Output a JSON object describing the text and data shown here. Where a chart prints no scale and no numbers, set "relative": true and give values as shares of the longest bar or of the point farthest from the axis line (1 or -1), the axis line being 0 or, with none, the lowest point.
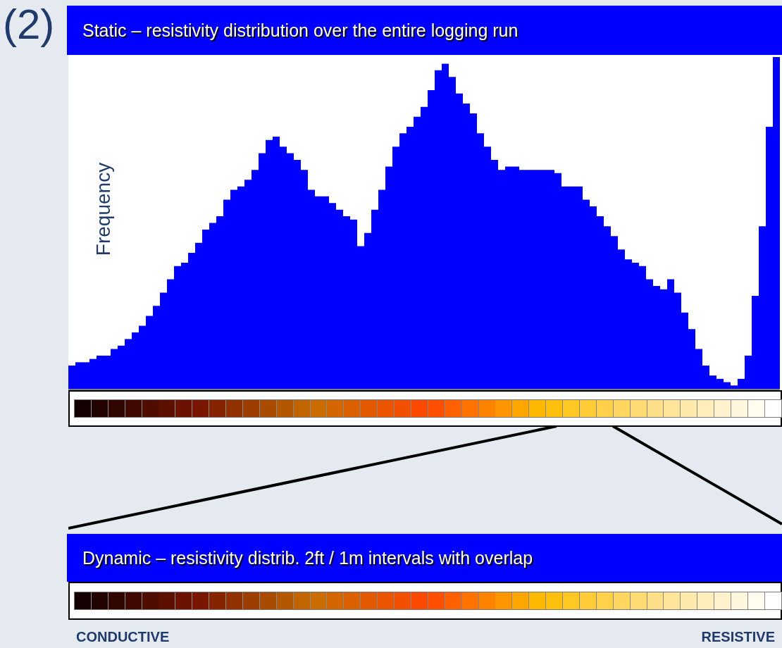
{
  "chart_data": {
    "type": "bar",
    "relative": true,
    "title": "Static – resistivity distribution over the entire logging run",
    "ylabel": "Frequency",
    "color": "#0000ff",
    "legend": false,
    "tick_labels": false,
    "categories": [
      null,
      null,
      null,
      null,
      null,
      null,
      null,
      null,
      null,
      null,
      null,
      null,
      null,
      null,
      null,
      null,
      null,
      null,
      null,
      null,
      null,
      null,
      null,
      null,
      null,
      null,
      null,
      null,
      null,
      null,
      null,
      null,
      null,
      null,
      null,
      null,
      null,
      null,
      null,
      null,
      null,
      null,
      null,
      null,
      null,
      null,
      null,
      null,
      null,
      null,
      null,
      null,
      null,
      null,
      null,
      null,
      null,
      null,
      null,
      null,
      null,
      null,
      null,
      null,
      null,
      null,
      null,
      null,
      null,
      null,
      null,
      null,
      null,
      null,
      null,
      null,
      null,
      null,
      null,
      null,
      null,
      null,
      null,
      null,
      null,
      null,
      null,
      null,
      null,
      null,
      null,
      null,
      null,
      null,
      null,
      null,
      null,
      null,
      null,
      null,
      null
    ],
    "values": [
      0.07,
      0.08,
      0.08,
      0.09,
      0.1,
      0.1,
      0.12,
      0.13,
      0.15,
      0.17,
      0.19,
      0.22,
      0.25,
      0.29,
      0.33,
      0.37,
      0.38,
      0.41,
      0.44,
      0.48,
      0.5,
      0.52,
      0.57,
      0.6,
      0.61,
      0.63,
      0.66,
      0.71,
      0.75,
      0.76,
      0.73,
      0.71,
      0.69,
      0.66,
      0.6,
      0.58,
      0.58,
      0.56,
      0.54,
      0.52,
      0.51,
      0.43,
      0.47,
      0.54,
      0.6,
      0.67,
      0.73,
      0.77,
      0.79,
      0.82,
      0.85,
      0.9,
      0.96,
      0.98,
      0.94,
      0.89,
      0.86,
      0.83,
      0.77,
      0.73,
      0.69,
      0.66,
      0.67,
      0.67,
      0.66,
      0.66,
      0.66,
      0.66,
      0.66,
      0.65,
      0.61,
      0.61,
      0.61,
      0.57,
      0.55,
      0.52,
      0.49,
      0.46,
      0.42,
      0.39,
      0.38,
      0.37,
      0.33,
      0.31,
      0.3,
      0.33,
      0.29,
      0.23,
      0.18,
      0.12,
      0.07,
      0.04,
      0.03,
      0.02,
      0.01,
      0.03,
      0.1,
      0.28,
      0.49,
      0.79,
      1
    ],
    "annotations": [
      "(2)",
      "Dynamic – resistivity distrib. 2ft / 1m intervals with overlap",
      "CONDUCTIVE",
      "RESISTIVE"
    ]
  }
}
